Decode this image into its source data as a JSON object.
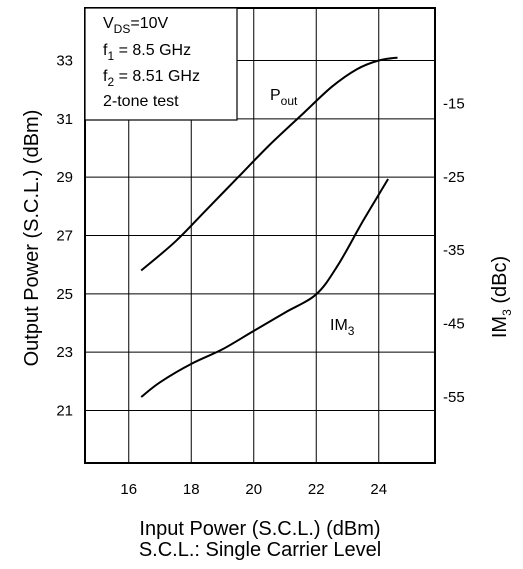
{
  "chart_data": {
    "type": "line",
    "xlabel": "Input Power (S.C.L.) (dBm)",
    "xlabel2": "S.C.L.: Single Carrier Level",
    "ylabel": "Output Power (S.C.L.) (dBm)",
    "y2label_main": "IM",
    "y2label_sub": "3",
    "y2label_suffix": " (dBc)",
    "xlim": [
      14.6,
      25.8
    ],
    "ylim": [
      19.2,
      34.8
    ],
    "y2lim": [
      -64,
      -2
    ],
    "grid": true,
    "x_ticks": [
      "16",
      "18",
      "20",
      "22",
      "24"
    ],
    "x_tick_values": [
      16,
      18,
      20,
      22,
      24
    ],
    "y_ticks": [
      "21",
      "23",
      "25",
      "27",
      "29",
      "31",
      "33"
    ],
    "y_tick_values": [
      21,
      23,
      25,
      27,
      29,
      31,
      33
    ],
    "y2_ticks": [
      "-15",
      "-25",
      "-35",
      "-45",
      "-55"
    ],
    "y2_tick_values": [
      -15,
      -25,
      -35,
      -45,
      -55
    ],
    "series": [
      {
        "axis": "left",
        "label_main": "P",
        "label_sub": "out",
        "x": [
          16.4,
          17.5,
          18.5,
          19.5,
          20.5,
          21.5,
          22.5,
          23.3,
          24.0,
          24.6
        ],
        "y": [
          25.8,
          26.8,
          27.9,
          29.0,
          30.1,
          31.1,
          32.1,
          32.7,
          33.0,
          33.1
        ]
      },
      {
        "axis": "right",
        "label_main": "IM",
        "label_sub": "3",
        "x": [
          16.4,
          17.0,
          18.0,
          19.0,
          20.0,
          21.0,
          22.0,
          22.7,
          23.5,
          24.3
        ],
        "y": [
          -55,
          -53,
          -50.5,
          -48.5,
          -46,
          -43.5,
          -41,
          -37,
          -31,
          -25.3
        ]
      }
    ],
    "annotation": {
      "line1_main": "V",
      "line1_sub": "DS",
      "line1_suffix": "=10V",
      "line2_main": "f",
      "line2_sub": "1",
      "line2_suffix": " = 8.5 GHz",
      "line3_main": "f",
      "line3_sub": "2",
      "line3_suffix": " = 8.51 GHz",
      "line4": "2-tone test"
    }
  },
  "colors": {
    "line": "#000000",
    "grid": "#000000",
    "background": "#ffffff"
  }
}
